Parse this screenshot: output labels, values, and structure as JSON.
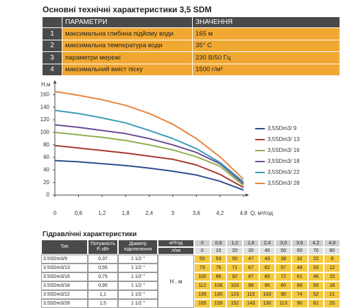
{
  "title": "Основні технічні характеристики 3,5 SDM",
  "spec_table": {
    "header": [
      "ПАРАМЕТРИ",
      "ЗНАЧЕННЯ"
    ],
    "rows": [
      [
        "1",
        "максимальна глибина підйому води",
        "165 м"
      ],
      [
        "2",
        "максимальна температура води",
        "35° С"
      ],
      [
        "3",
        "параметри мережі",
        "230 В/50 Гц"
      ],
      [
        "4",
        "максимальний вміст піску",
        "1500 г/м³"
      ]
    ]
  },
  "chart_data": {
    "type": "line",
    "x": [
      0,
      0.6,
      1.2,
      1.8,
      2.4,
      3,
      3.6,
      4.2,
      4.8
    ],
    "xlim": [
      0,
      4.8
    ],
    "ylim": [
      0,
      180
    ],
    "xticks": [
      0,
      {
        "value": 0.6,
        "label": "0,6"
      },
      {
        "value": 1.2,
        "label": "1,2"
      },
      {
        "value": 1.8,
        "label": "1,8"
      },
      {
        "value": 2.4,
        "label": "2,4"
      },
      3,
      {
        "value": 3.6,
        "label": "3,6"
      },
      {
        "value": 4.2,
        "label": "4,2"
      },
      {
        "value": 4.8,
        "label": "4,8"
      }
    ],
    "yticks": [
      0,
      20,
      40,
      60,
      80,
      100,
      120,
      140,
      160
    ],
    "x_label": "Q, м³/год",
    "y_label": "Н,м",
    "series": [
      {
        "name": "3,5SDm3/ 9",
        "color": "#2c4b8c",
        "values": [
          55,
          53,
          50,
          47,
          43,
          38,
          32,
          22,
          8
        ]
      },
      {
        "name": "3,5SDm3/ 13",
        "color": "#a8362e",
        "values": [
          79,
          75,
          71,
          67,
          62,
          57,
          48,
          33,
          12
        ]
      },
      {
        "name": "3,5SDm3/ 16",
        "color": "#8fae4c",
        "values": [
          100,
          96,
          92,
          87,
          80,
          72,
          61,
          46,
          15
        ]
      },
      {
        "name": "3,5SDm3/ 18",
        "color": "#6b4c92",
        "values": [
          112,
          108,
          103,
          98,
          90,
          80,
          68,
          50,
          18
        ]
      },
      {
        "name": "3,5SDm3/ 22",
        "color": "#3b9bb8",
        "values": [
          135,
          130,
          123,
          115,
          103,
          90,
          74,
          52,
          21
        ]
      },
      {
        "name": "3,5SDm3/ 28",
        "color": "#e8843b",
        "values": [
          165,
          159,
          152,
          143,
          130,
          113,
          90,
          61,
          25
        ]
      }
    ]
  },
  "hydraulic_table": {
    "title": "Гідравлічні характеристики",
    "header": [
      "Тип",
      "Потужність Р, кВт",
      "Діаметр підключення"
    ],
    "flow_units": [
      "м³/год",
      "л/хв"
    ],
    "flow_m3h": [
      "0",
      "0,6",
      "1,2",
      "1,8",
      "2,4",
      "3,0",
      "3,6",
      "4,2",
      "4,8"
    ],
    "flow_lmin": [
      0,
      10,
      20,
      30,
      40,
      50,
      60,
      70,
      80
    ],
    "head_label": "Н , м",
    "rows": [
      {
        "type": "3.5SDm3/9",
        "power": "0,37",
        "diameter": "1 1/2 \""
      },
      {
        "type": "3.5SDm3/13",
        "power": "0,55",
        "diameter": "1 1/2 \""
      },
      {
        "type": "3.5SDm3/16",
        "power": "0,75",
        "diameter": "1 1/2 \""
      },
      {
        "type": "3.5SDm3/18",
        "power": "0,95",
        "diameter": "1 1/2 \""
      },
      {
        "type": "3.5SDm3/22",
        "power": "1,1",
        "diameter": "1 1/2 \""
      },
      {
        "type": "3.5SDm3/28",
        "power": "1,5",
        "diameter": "1 1/2 \""
      }
    ]
  }
}
